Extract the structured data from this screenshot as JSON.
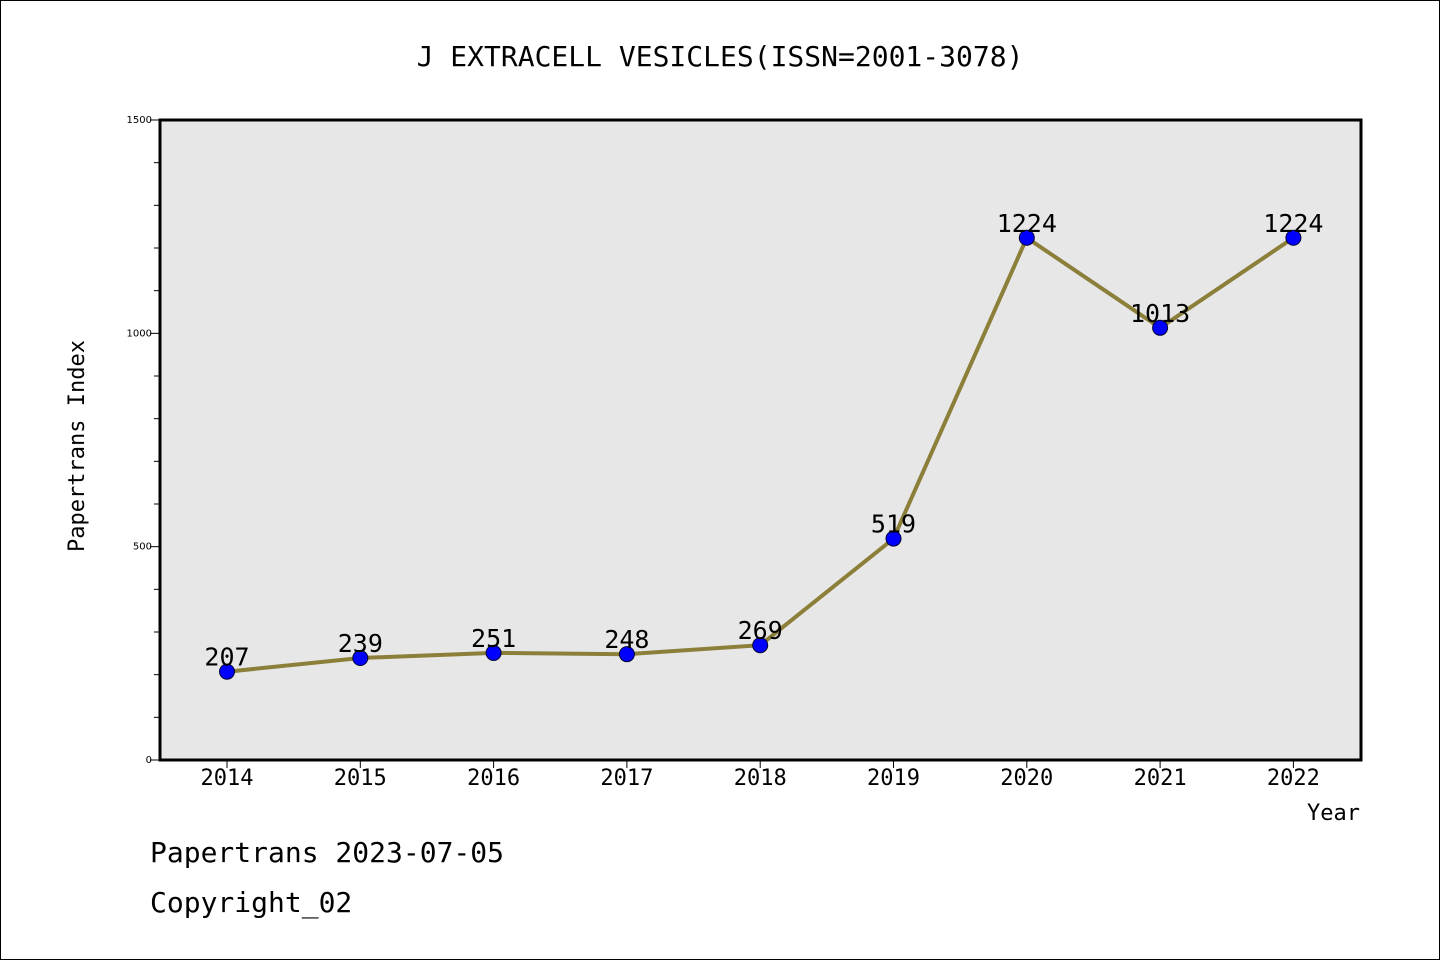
{
  "chart_data": {
    "type": "line",
    "title": "J EXTRACELL VESICLES(ISSN=2001-3078)",
    "xlabel": "Year",
    "ylabel": "Papertrans Index",
    "categories": [
      "2014",
      "2015",
      "2016",
      "2017",
      "2018",
      "2019",
      "2020",
      "2021",
      "2022"
    ],
    "series": [
      {
        "values": [
          207,
          239,
          251,
          248,
          269,
          519,
          1224,
          1013,
          1224
        ]
      }
    ],
    "data_labels": [
      "207",
      "239",
      "251",
      "248",
      "269",
      "519",
      "1224",
      "1013",
      "1224"
    ],
    "ylim": [
      0,
      1500
    ],
    "yticks": [
      0,
      500,
      1000,
      1500
    ],
    "ytick_labels": [
      "0",
      "500",
      "1000",
      "1500"
    ],
    "grid": false,
    "legend": "none",
    "colors": {
      "line": "#8c7f3a",
      "marker": "#0000ff",
      "plot_bg": "#e7e7e7"
    }
  },
  "footer": {
    "line1": "Papertrans 2023-07-05",
    "line2": "Copyright_02"
  }
}
